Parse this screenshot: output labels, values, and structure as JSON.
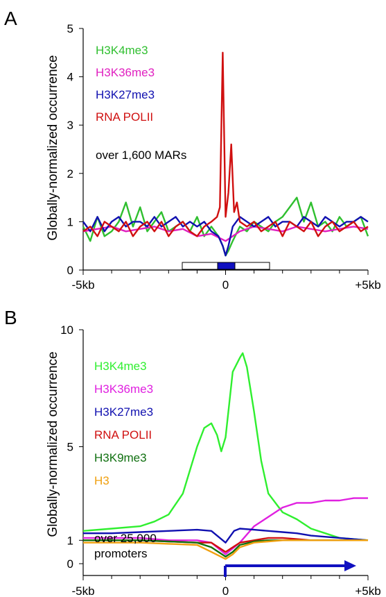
{
  "chart_data": [
    {
      "type": "line",
      "panel_label": "A",
      "ylabel": "Globally-normalized occurrence",
      "ylim": [
        0,
        5
      ],
      "y_ticks": [
        "0",
        "1",
        "2",
        "3",
        "4",
        "5"
      ],
      "x_ticks": [
        "-5kb",
        "0",
        "+5kb"
      ],
      "xlim": [
        -5000,
        5000
      ],
      "legend": [
        "H3K4me3",
        "H3K36me3",
        "H3K27me3",
        "RNA POLII"
      ],
      "note": "over 1,600 MARs",
      "legend_colors": [
        "#2fbf2f",
        "#e020c0",
        "#1010b0",
        "#d01010"
      ],
      "series": [
        {
          "name": "H3K4me3",
          "color": "#2fbf2f",
          "x": [
            -5000,
            -4750,
            -4500,
            -4250,
            -4000,
            -3750,
            -3500,
            -3250,
            -3000,
            -2750,
            -2500,
            -2250,
            -2000,
            -1750,
            -1500,
            -1250,
            -1000,
            -750,
            -500,
            -250,
            -100,
            0,
            100,
            250,
            500,
            750,
            1000,
            1250,
            1500,
            1750,
            2000,
            2250,
            2500,
            2750,
            3000,
            3250,
            3500,
            3750,
            4000,
            4250,
            4500,
            4750,
            5000
          ],
          "y": [
            0.9,
            0.6,
            1.1,
            0.7,
            0.8,
            1.0,
            1.4,
            0.9,
            1.3,
            0.8,
            1.0,
            1.2,
            0.8,
            0.9,
            1.0,
            0.8,
            1.1,
            0.7,
            0.9,
            0.7,
            0.5,
            0.3,
            0.4,
            0.6,
            0.9,
            0.8,
            1.0,
            0.9,
            0.8,
            1.0,
            1.1,
            1.3,
            1.5,
            1.0,
            1.4,
            0.9,
            1.0,
            0.8,
            1.1,
            0.9,
            1.0,
            1.1,
            0.7
          ]
        },
        {
          "name": "H3K36me3",
          "color": "#e020c0",
          "x": [
            -5000,
            -4500,
            -4000,
            -3500,
            -3000,
            -2500,
            -2000,
            -1500,
            -1000,
            -500,
            0,
            500,
            1000,
            1500,
            2000,
            2500,
            3000,
            3500,
            4000,
            4500,
            5000
          ],
          "y": [
            0.8,
            0.85,
            0.9,
            0.8,
            0.85,
            0.9,
            0.8,
            0.85,
            0.7,
            0.75,
            0.6,
            0.8,
            0.9,
            0.85,
            0.8,
            0.9,
            0.85,
            0.8,
            0.85,
            0.9,
            0.85
          ]
        },
        {
          "name": "H3K27me3",
          "color": "#1010b0",
          "x": [
            -5000,
            -4750,
            -4500,
            -4250,
            -4000,
            -3750,
            -3500,
            -3250,
            -3000,
            -2750,
            -2500,
            -2250,
            -2000,
            -1750,
            -1500,
            -1250,
            -1000,
            -750,
            -500,
            -250,
            -100,
            0,
            100,
            250,
            500,
            750,
            1000,
            1250,
            1500,
            1750,
            2000,
            2250,
            2500,
            2750,
            3000,
            3250,
            3500,
            3750,
            4000,
            4250,
            4500,
            4750,
            5000
          ],
          "y": [
            1.0,
            0.8,
            1.1,
            0.8,
            1.0,
            1.1,
            0.9,
            1.0,
            1.0,
            0.9,
            1.1,
            0.9,
            1.0,
            1.1,
            0.9,
            1.0,
            0.9,
            1.0,
            0.8,
            0.7,
            0.5,
            0.3,
            0.5,
            0.9,
            1.1,
            1.0,
            0.9,
            1.0,
            1.1,
            0.9,
            1.0,
            1.0,
            0.9,
            1.1,
            1.0,
            0.9,
            1.1,
            1.0,
            0.9,
            1.0,
            1.0,
            1.1,
            1.0
          ]
        },
        {
          "name": "RNA POLII",
          "color": "#d01010",
          "x": [
            -5000,
            -4750,
            -4500,
            -4250,
            -4000,
            -3750,
            -3500,
            -3250,
            -3000,
            -2750,
            -2500,
            -2250,
            -2000,
            -1750,
            -1500,
            -1250,
            -1000,
            -750,
            -500,
            -300,
            -200,
            -100,
            0,
            100,
            200,
            300,
            400,
            500,
            750,
            1000,
            1250,
            1500,
            1750,
            2000,
            2250,
            2500,
            2750,
            3000,
            3250,
            3500,
            3750,
            4000,
            4250,
            4500,
            4750,
            5000
          ],
          "y": [
            0.8,
            0.9,
            0.7,
            1.0,
            0.9,
            0.8,
            1.0,
            0.7,
            0.9,
            1.0,
            0.8,
            1.0,
            0.7,
            0.9,
            1.0,
            0.8,
            0.7,
            0.9,
            1.0,
            1.1,
            1.3,
            4.5,
            1.1,
            1.6,
            2.6,
            1.2,
            1.4,
            1.0,
            0.9,
            1.0,
            0.8,
            0.9,
            1.0,
            0.7,
            1.0,
            0.9,
            0.8,
            1.0,
            0.7,
            0.9,
            1.0,
            0.8,
            0.9,
            1.0,
            0.8,
            0.9
          ]
        }
      ]
    },
    {
      "type": "line",
      "panel_label": "B",
      "ylabel": "Globally-normalized occurrence",
      "ylim": [
        -0.5,
        10
      ],
      "y_ticks": [
        "0",
        "1",
        "5",
        "10"
      ],
      "x_ticks": [
        "-5kb",
        "0",
        "+5kb"
      ],
      "xlim": [
        -5000,
        5000
      ],
      "legend": [
        "H3K4me3",
        "H3K36me3",
        "H3K27me3",
        "RNA POLII",
        "H3K9me3",
        "H3"
      ],
      "note": "over 25,000 promoters",
      "legend_colors": [
        "#2fef2f",
        "#e020e0",
        "#1010b0",
        "#d01010",
        "#107010",
        "#f0a010"
      ],
      "series": [
        {
          "name": "H3K4me3",
          "color": "#2fef2f",
          "x": [
            -5000,
            -4000,
            -3000,
            -2500,
            -2000,
            -1500,
            -1000,
            -750,
            -500,
            -300,
            -150,
            0,
            250,
            500,
            600,
            750,
            1000,
            1250,
            1500,
            2000,
            2500,
            3000,
            3500,
            4000,
            4500,
            5000
          ],
          "y": [
            1.4,
            1.5,
            1.6,
            1.8,
            2.1,
            3.0,
            5.0,
            5.8,
            6.0,
            5.5,
            4.8,
            5.4,
            8.2,
            8.8,
            9.0,
            8.4,
            6.5,
            4.4,
            3.0,
            2.2,
            1.9,
            1.5,
            1.3,
            1.1,
            1.05,
            1.0
          ]
        },
        {
          "name": "H3K36me3",
          "color": "#e020e0",
          "x": [
            -5000,
            -4000,
            -3000,
            -2000,
            -1000,
            -500,
            0,
            500,
            1000,
            1500,
            2000,
            2500,
            3000,
            3500,
            4000,
            4500,
            5000
          ],
          "y": [
            1.1,
            1.1,
            1.1,
            1.0,
            1.0,
            0.9,
            0.4,
            0.9,
            1.6,
            2.0,
            2.4,
            2.6,
            2.6,
            2.7,
            2.7,
            2.8,
            2.8
          ]
        },
        {
          "name": "H3K27me3",
          "color": "#1010b0",
          "x": [
            -5000,
            -4000,
            -3000,
            -2000,
            -1000,
            -500,
            0,
            300,
            500,
            1000,
            1500,
            2000,
            2500,
            3000,
            4000,
            5000
          ],
          "y": [
            1.3,
            1.3,
            1.35,
            1.4,
            1.45,
            1.4,
            0.9,
            1.4,
            1.5,
            1.45,
            1.4,
            1.35,
            1.3,
            1.2,
            1.1,
            1.0
          ]
        },
        {
          "name": "RNA POLII",
          "color": "#d01010",
          "x": [
            -5000,
            -4000,
            -3000,
            -2000,
            -1000,
            -500,
            0,
            250,
            500,
            1000,
            1500,
            2000,
            2500,
            3000,
            4000,
            5000
          ],
          "y": [
            1.0,
            1.0,
            1.0,
            0.95,
            0.9,
            0.9,
            0.5,
            0.7,
            0.9,
            1.0,
            1.1,
            1.1,
            1.05,
            1.0,
            1.0,
            1.0
          ]
        },
        {
          "name": "H3K9me3",
          "color": "#107010",
          "x": [
            -5000,
            -4000,
            -3000,
            -2000,
            -1000,
            -500,
            0,
            250,
            500,
            1000,
            1500,
            2000,
            3000,
            4000,
            5000
          ],
          "y": [
            1.0,
            1.0,
            1.0,
            0.95,
            0.9,
            0.7,
            0.3,
            0.5,
            0.8,
            0.95,
            1.0,
            1.0,
            1.0,
            1.0,
            1.0
          ]
        },
        {
          "name": "H3",
          "color": "#f0a010",
          "x": [
            -5000,
            -4000,
            -3000,
            -2000,
            -1000,
            -500,
            0,
            250,
            500,
            1000,
            1500,
            2000,
            3000,
            4000,
            5000
          ],
          "y": [
            0.9,
            0.9,
            0.9,
            0.85,
            0.8,
            0.5,
            0.2,
            0.4,
            0.7,
            0.9,
            0.95,
            1.0,
            1.0,
            1.0,
            1.0
          ]
        }
      ]
    }
  ]
}
